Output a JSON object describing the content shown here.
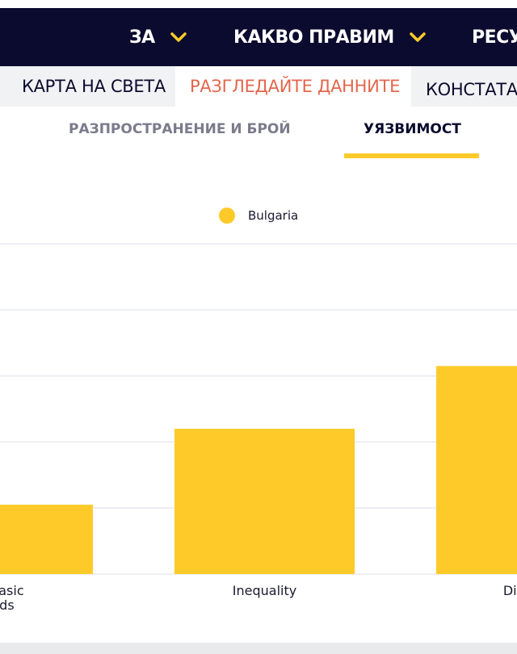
{
  "nav": {
    "items": [
      {
        "label": "ЗА"
      },
      {
        "label": "КАКВО ПРАВИМ"
      },
      {
        "label": "РЕСУ"
      }
    ]
  },
  "subnav": {
    "tabs": [
      {
        "label": "КАРТА НА СВЕТА"
      },
      {
        "label": "РАЗГЛЕДАЙТЕ ДАННИТЕ"
      },
      {
        "label": "КОНСТАТАЦ"
      }
    ]
  },
  "chart_tabs": {
    "tabs": [
      {
        "label": "РАЗПРОСТРАНЕНИЕ И БРОЙ"
      },
      {
        "label": "УЯЗВИМОСТ"
      }
    ]
  },
  "colors": {
    "navy": "#0a0b2e",
    "accent": "#fdca2a",
    "active_tab_text": "#e4664d"
  },
  "chart_data": {
    "type": "bar",
    "categories": [
      "of basic needs",
      "Inequality",
      "Disenfr Gr"
    ],
    "category_lines": [
      [
        "f basic",
        "eds"
      ],
      [
        "Inequality"
      ],
      [
        "Disenfr",
        "Gr"
      ]
    ],
    "series": [
      {
        "name": "Bulgaria",
        "values": [
          21,
          44,
          63
        ],
        "color": "#fdca2a"
      }
    ],
    "ylim": [
      0,
      100
    ],
    "grid": true,
    "legend": "top-center"
  }
}
